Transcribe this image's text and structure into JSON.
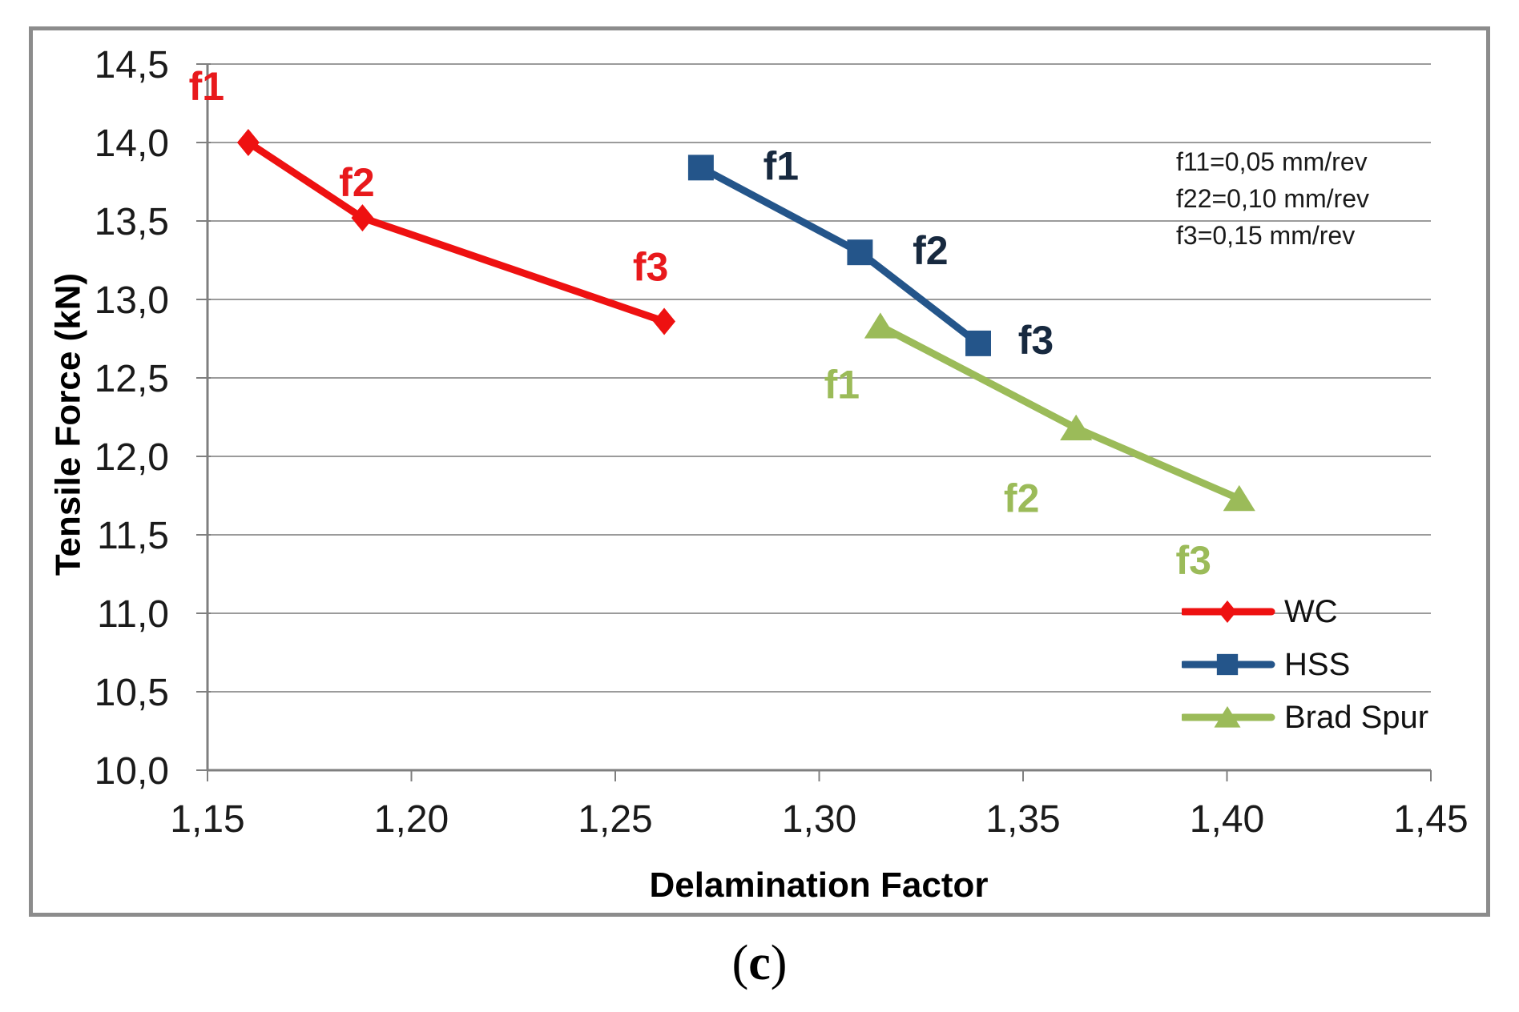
{
  "figure": {
    "caption_open": "(",
    "caption_letter": "c",
    "caption_close": ")"
  },
  "annotation": {
    "lines": [
      "f11=0,05 mm/rev",
      "f22=0,10 mm/rev",
      "f3=0,15 mm/rev"
    ]
  },
  "chart_data": {
    "type": "line",
    "title": "",
    "xlabel": "Delamination Factor",
    "ylabel": "Tensile Force (kN)",
    "xlim": [
      1.15,
      1.45
    ],
    "ylim": [
      10.0,
      14.5
    ],
    "grid": "horizontal",
    "legend_position": "inside-right-bottom",
    "colors": {
      "grid": "#9B9B9B",
      "axis": "#7F7F7F",
      "border": "#8C8C8C",
      "tick_label": "#1A1A1A"
    },
    "x_ticks": [
      {
        "v": 1.15,
        "label": "1,15"
      },
      {
        "v": 1.2,
        "label": "1,20"
      },
      {
        "v": 1.25,
        "label": "1,25"
      },
      {
        "v": 1.3,
        "label": "1,30"
      },
      {
        "v": 1.35,
        "label": "1,35"
      },
      {
        "v": 1.4,
        "label": "1,40"
      },
      {
        "v": 1.45,
        "label": "1,45"
      }
    ],
    "y_ticks": [
      {
        "v": 10.0,
        "label": "10,0"
      },
      {
        "v": 10.5,
        "label": "10,5"
      },
      {
        "v": 11.0,
        "label": "11,0"
      },
      {
        "v": 11.5,
        "label": "11,5"
      },
      {
        "v": 12.0,
        "label": "12,0"
      },
      {
        "v": 12.5,
        "label": "12,5"
      },
      {
        "v": 13.0,
        "label": "13,0"
      },
      {
        "v": 13.5,
        "label": "13,5"
      },
      {
        "v": 14.0,
        "label": "14,0"
      },
      {
        "v": 14.5,
        "label": "14,5"
      }
    ],
    "series": [
      {
        "name": "WC",
        "marker": "diamond",
        "color": "#EE1111",
        "label_color": "#E8191C",
        "points": [
          {
            "x": 1.16,
            "y": 14.0,
            "label": "f1"
          },
          {
            "x": 1.188,
            "y": 13.52,
            "label": "f2"
          },
          {
            "x": 1.262,
            "y": 12.86,
            "label": "f3"
          }
        ]
      },
      {
        "name": "HSS",
        "marker": "square",
        "color": "#24558A",
        "label_color": "#17293F",
        "points": [
          {
            "x": 1.271,
            "y": 13.84,
            "label": "f1"
          },
          {
            "x": 1.31,
            "y": 13.3,
            "label": "f2"
          },
          {
            "x": 1.339,
            "y": 12.72,
            "label": "f3"
          }
        ]
      },
      {
        "name": "Brad Spur",
        "marker": "triangle",
        "color": "#9BBB59",
        "label_color": "#9BBB59",
        "points": [
          {
            "x": 1.315,
            "y": 12.83,
            "label": "f1"
          },
          {
            "x": 1.363,
            "y": 12.18,
            "label": "f2"
          },
          {
            "x": 1.403,
            "y": 11.73,
            "label": "f3"
          }
        ]
      }
    ]
  }
}
